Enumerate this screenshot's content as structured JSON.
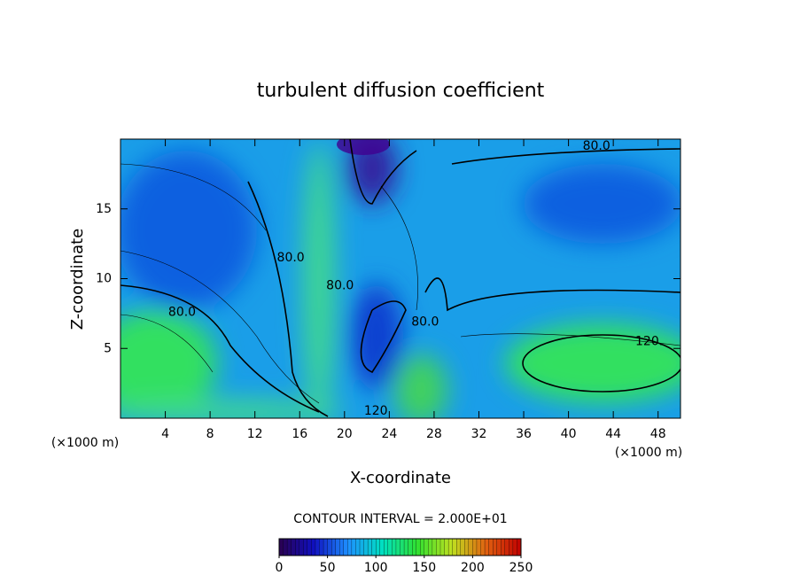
{
  "chart_data": {
    "type": "contour",
    "title": "turbulent diffusion coefficient",
    "x_label": "X-coordinate",
    "y_label": "Z-coordinate",
    "x_unit": "(×1000 m)",
    "xlim": [
      0,
      50
    ],
    "xticks": [
      4,
      8,
      12,
      16,
      20,
      24,
      28,
      32,
      36,
      40,
      44,
      48
    ],
    "ylim": [
      0,
      20
    ],
    "yticks": [
      5,
      10,
      15
    ],
    "contour_interval": "CONTOUR INTERVAL = 2.000E+01",
    "annotations": [
      {
        "text": "80.0",
        "x": 15.2,
        "y": 11.5
      },
      {
        "text": "80.0",
        "x": 5.5,
        "y": 7.6
      },
      {
        "text": "80.0",
        "x": 19.6,
        "y": 9.5
      },
      {
        "text": "80.0",
        "x": 27.2,
        "y": 6.9
      },
      {
        "text": "80.0",
        "x": 42.5,
        "y": 19.5
      },
      {
        "text": "120.",
        "x": 47.2,
        "y": 5.5
      },
      {
        "text": "120",
        "x": 22.8,
        "y": 0.5
      }
    ],
    "colorbar": {
      "lim": [
        0,
        250
      ],
      "ticks": [
        0,
        50,
        100,
        150,
        200,
        250
      ],
      "colors": [
        "#2a0050",
        "#1010c0",
        "#1e90ff",
        "#00e0c0",
        "#30e030",
        "#c0e020",
        "#e06010",
        "#c00000"
      ]
    }
  }
}
